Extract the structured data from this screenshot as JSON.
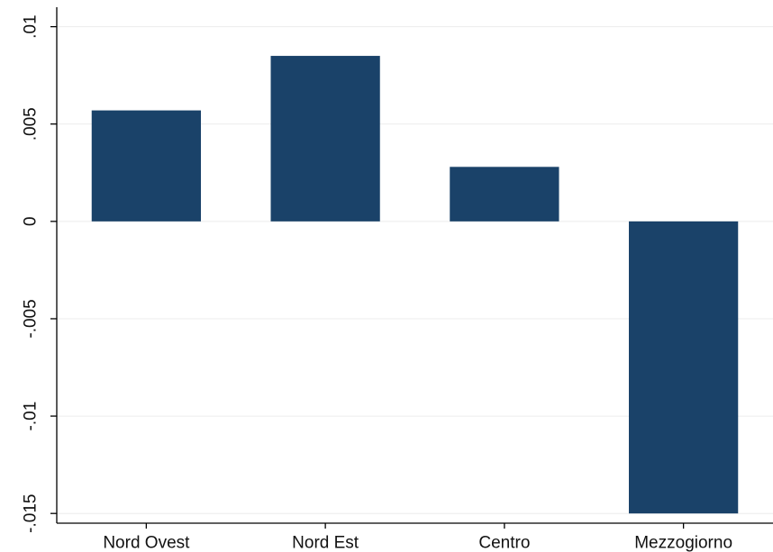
{
  "chart_data": {
    "type": "bar",
    "title": "",
    "xlabel": "",
    "ylabel": "",
    "categories": [
      "Nord Ovest",
      "Nord Est",
      "Centro",
      "Mezzogiorno"
    ],
    "values": [
      0.0057,
      0.0085,
      0.0028,
      -0.015
    ],
    "ylim": [
      -0.0155,
      0.011
    ],
    "yticks": [
      0.01,
      0.005,
      0,
      -0.005,
      -0.01,
      -0.015
    ],
    "ytick_labels": [
      ".01",
      ".005",
      "0",
      "-.005",
      "-.01",
      "-.015"
    ],
    "grid": true,
    "legend": "none",
    "colors": {
      "bar": "#1a4269",
      "grid": "#ececec",
      "axis": "#000000"
    }
  }
}
